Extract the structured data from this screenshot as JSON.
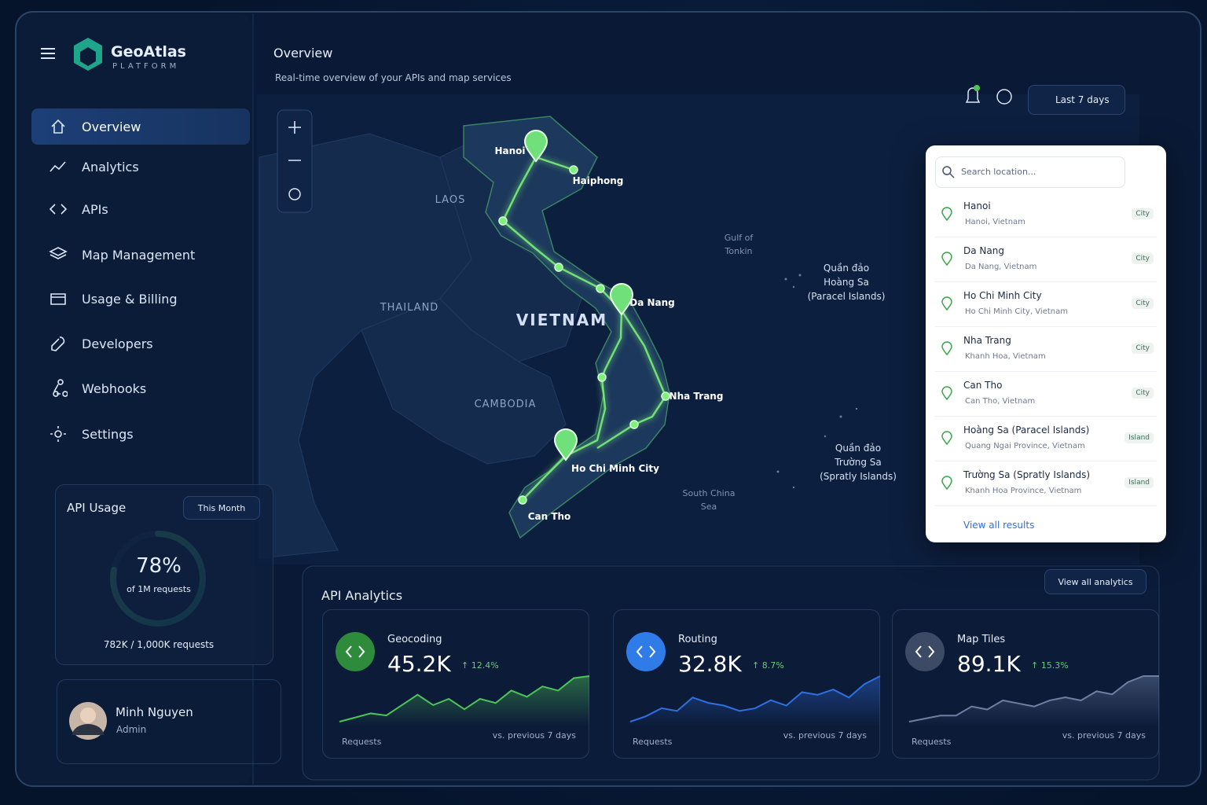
{
  "brand": {
    "name": "GeoAtlas",
    "tagline": "PLATFORM"
  },
  "header": {
    "title": "Overview",
    "subtitle": "Real-time overview of your APIs and map services",
    "date_range": "Last 7 days"
  },
  "nav": {
    "items": [
      "Overview",
      "Analytics",
      "APIs",
      "Map Management",
      "Usage & Billing",
      "Developers",
      "Webhooks",
      "Settings"
    ]
  },
  "api_usage": {
    "title": "API Usage",
    "period": "This Month",
    "percent": {
      "value": 78,
      "label": "78%"
    },
    "percent_caption": "of 1M requests",
    "total": "782K / 1,000K requests"
  },
  "user": {
    "name": "Minh Nguyen",
    "role": "Admin"
  },
  "map": {
    "labels": [
      {
        "text": [
          "Hanoi"
        ],
        "kind": "city"
      },
      {
        "text": [
          "Haiphong"
        ],
        "kind": "city"
      },
      {
        "text": [
          "LAOS"
        ],
        "kind": "country"
      },
      {
        "text": [
          "Gulf of",
          "Tonkin"
        ],
        "kind": "water"
      },
      {
        "text": [
          "Quần đảo",
          "Hoàng Sa",
          "(Paracel Islands)"
        ],
        "kind": "island"
      },
      {
        "text": [
          "THAILAND"
        ],
        "kind": "country"
      },
      {
        "text": [
          "VIETNAM"
        ],
        "kind": "main"
      },
      {
        "text": [
          "Da Nang"
        ],
        "kind": "city"
      },
      {
        "text": [
          "CAMBODIA"
        ],
        "kind": "country"
      },
      {
        "text": [
          "Nha Trang"
        ],
        "kind": "city"
      },
      {
        "text": [
          "Ho Chi Minh City"
        ],
        "kind": "city"
      },
      {
        "text": [
          "Can Tho"
        ],
        "kind": "city"
      },
      {
        "text": [
          "South China",
          "Sea"
        ],
        "kind": "water"
      },
      {
        "text": [
          "Quần đảo",
          "Trường Sa",
          "(Spratly Islands)"
        ],
        "kind": "island"
      }
    ]
  },
  "search": {
    "placeholder": "Search location...",
    "footer": "View all results",
    "results": [
      {
        "name": "Hanoi",
        "detail": "Hanoi, Vietnam",
        "tag": "City"
      },
      {
        "name": "Da Nang",
        "detail": "Da Nang, Vietnam",
        "tag": "City"
      },
      {
        "name": "Ho Chi Minh City",
        "detail": "Ho Chi Minh City, Vietnam",
        "tag": "City"
      },
      {
        "name": "Nha Trang",
        "detail": "Khanh Hoa, Vietnam",
        "tag": "City"
      },
      {
        "name": "Can Tho",
        "detail": "Can Tho, Vietnam",
        "tag": "City"
      },
      {
        "name": "Hoàng Sa (Paracel Islands)",
        "detail": "Quang Ngai Province, Vietnam",
        "tag": "Island"
      },
      {
        "name": "Trường Sa (Spratly Islands)",
        "detail": "Khanh Hoa Province, Vietnam",
        "tag": "Island"
      }
    ]
  },
  "analytics": {
    "title": "API Analytics",
    "action": "View all analytics",
    "cards": [
      {
        "name": "Geocoding",
        "value": "45.2K",
        "change": "↑ 12.4%",
        "metric": "Requests",
        "comparison": "vs. previous 7 days",
        "color": "#4cc456",
        "icon_bg": "#2e8b3c",
        "trend": [
          10,
          12,
          14,
          13,
          18,
          23,
          18,
          21,
          16,
          21,
          19,
          25,
          22,
          27,
          25,
          31,
          32
        ]
      },
      {
        "name": "Routing",
        "value": "32.8K",
        "change": "↑ 8.7%",
        "metric": "Requests",
        "comparison": "vs. previous 7 days",
        "color": "#2f6fe0",
        "icon_bg": "#2f7ce8",
        "trend": [
          8,
          10,
          13,
          12,
          17,
          15,
          14,
          12,
          13,
          16,
          14,
          19,
          18,
          20,
          17,
          22,
          25
        ]
      },
      {
        "name": "Map Tiles",
        "value": "89.1K",
        "change": "↑ 15.3%",
        "metric": "Requests",
        "comparison": "vs. previous 7 days",
        "color": "#6f7fa3",
        "icon_bg": "#3c4a66",
        "trend": [
          10,
          11,
          12,
          12,
          15,
          14,
          17,
          16,
          15,
          17,
          18,
          17,
          20,
          19,
          23,
          25,
          25
        ]
      }
    ]
  }
}
